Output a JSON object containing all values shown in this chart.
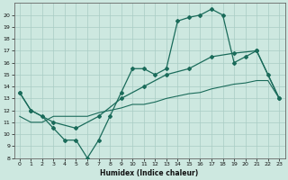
{
  "xlabel": "Humidex (Indice chaleur)",
  "background_color": "#cde8e0",
  "grid_color": "#a8ccc4",
  "line_color": "#1a6b5a",
  "xlim": [
    -0.5,
    23.5
  ],
  "ylim": [
    8,
    21
  ],
  "xticks": [
    0,
    1,
    2,
    3,
    4,
    5,
    6,
    7,
    8,
    9,
    10,
    11,
    12,
    13,
    14,
    15,
    16,
    17,
    18,
    19,
    20,
    21,
    22,
    23
  ],
  "yticks": [
    8,
    9,
    10,
    11,
    12,
    13,
    14,
    15,
    16,
    17,
    18,
    19,
    20
  ],
  "line1_x": [
    0,
    1,
    2,
    3,
    4,
    5,
    6,
    7,
    8,
    9,
    10,
    11,
    12,
    13,
    14,
    15,
    16,
    17,
    18,
    19,
    20,
    21,
    22,
    23
  ],
  "line1_y": [
    13.5,
    12,
    11.5,
    10.5,
    9.5,
    9.5,
    8.0,
    9.5,
    11.5,
    13.5,
    15.5,
    15.5,
    15.0,
    15.5,
    19.5,
    19.8,
    20.0,
    20.5,
    20.0,
    16.0,
    16.5,
    17.0,
    15.0,
    13.0
  ],
  "line2_x": [
    0,
    1,
    3,
    5,
    7,
    9,
    11,
    13,
    15,
    17,
    19,
    21,
    23
  ],
  "line2_y": [
    13.5,
    12.0,
    11.0,
    10.5,
    11.5,
    13.0,
    14.0,
    15.0,
    15.5,
    16.5,
    16.8,
    17.0,
    13.0
  ],
  "line3_x": [
    0,
    1,
    2,
    3,
    4,
    5,
    6,
    7,
    8,
    9,
    10,
    11,
    12,
    13,
    14,
    15,
    16,
    17,
    18,
    19,
    20,
    21,
    22,
    23
  ],
  "line3_y": [
    11.5,
    11.0,
    11.0,
    11.5,
    11.5,
    11.5,
    11.5,
    11.8,
    12.0,
    12.2,
    12.5,
    12.5,
    12.7,
    13.0,
    13.2,
    13.4,
    13.5,
    13.8,
    14.0,
    14.2,
    14.3,
    14.5,
    14.5,
    13.0
  ]
}
